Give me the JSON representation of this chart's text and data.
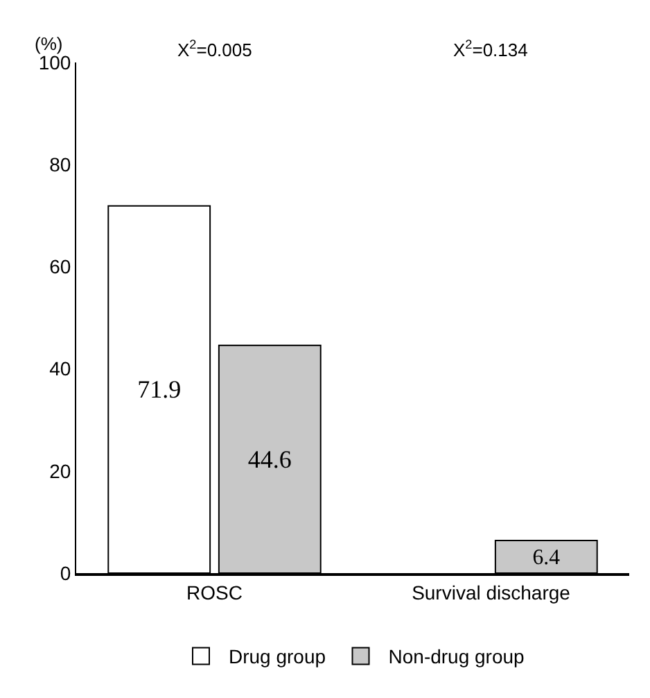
{
  "chart_data": {
    "type": "bar",
    "ylabel": "(%)",
    "categories": [
      "ROSC",
      "Survival discharge"
    ],
    "series": [
      {
        "name": "Drug group",
        "color": "#ffffff",
        "values": [
          71.9,
          null
        ],
        "value_labels": [
          "71.9",
          null
        ]
      },
      {
        "name": "Non-drug group",
        "color": "#c8c8c8",
        "values": [
          44.6,
          6.4
        ],
        "value_labels": [
          "44.6",
          "6.4"
        ]
      }
    ],
    "ylim": [
      0,
      100
    ],
    "yticks": [
      0,
      20,
      40,
      60,
      80,
      100
    ],
    "legend": "bottom",
    "annotations": [
      "X$^{2}$=0.005",
      "X$^{2}$=0.134"
    ]
  }
}
